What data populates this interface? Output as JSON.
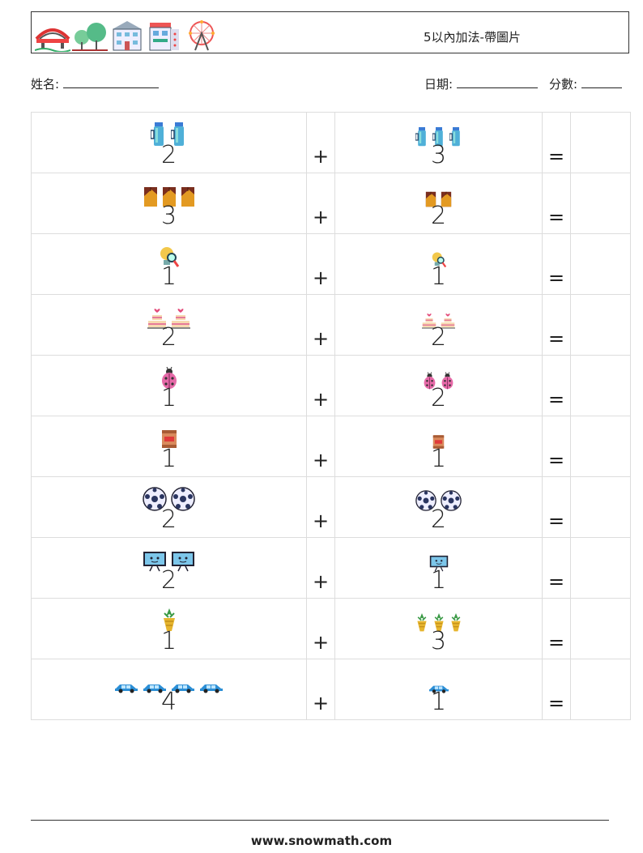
{
  "header": {
    "title": "5以內加法-帶圖片",
    "icons": [
      "bridge-icon",
      "trees-icon",
      "building-icon",
      "shop-icon",
      "ferris-wheel-icon"
    ]
  },
  "info": {
    "name_label": "姓名:",
    "date_label": "日期:",
    "score_label": "分數:"
  },
  "problems": [
    {
      "icon": "thermos-icon",
      "a": "2",
      "a_count": 2,
      "b": "3",
      "b_count": 3,
      "plus": "+",
      "equals": "="
    },
    {
      "icon": "chocolate-icon",
      "a": "3",
      "a_count": 3,
      "b": "2",
      "b_count": 2,
      "plus": "+",
      "equals": "="
    },
    {
      "icon": "magnifier-bulb-icon",
      "a": "1",
      "a_count": 1,
      "b": "1",
      "b_count": 1,
      "plus": "+",
      "equals": "="
    },
    {
      "icon": "wedding-cake-icon",
      "a": "2",
      "a_count": 2,
      "b": "2",
      "b_count": 2,
      "plus": "+",
      "equals": "="
    },
    {
      "icon": "ladybug-icon",
      "a": "1",
      "a_count": 1,
      "b": "2",
      "b_count": 2,
      "plus": "+",
      "equals": "="
    },
    {
      "icon": "drum-icon",
      "a": "1",
      "a_count": 1,
      "b": "1",
      "b_count": 1,
      "plus": "+",
      "equals": "="
    },
    {
      "icon": "soccer-ball-icon",
      "a": "2",
      "a_count": 2,
      "b": "2",
      "b_count": 2,
      "plus": "+",
      "equals": "="
    },
    {
      "icon": "monitor-icon",
      "a": "2",
      "a_count": 2,
      "b": "1",
      "b_count": 1,
      "plus": "+",
      "equals": "="
    },
    {
      "icon": "pineapple-icon",
      "a": "1",
      "a_count": 1,
      "b": "3",
      "b_count": 3,
      "plus": "+",
      "equals": "="
    },
    {
      "icon": "car-icon",
      "a": "4",
      "a_count": 4,
      "b": "1",
      "b_count": 1,
      "plus": "+",
      "equals": "="
    }
  ],
  "footer": {
    "url": "www.snowmath.com"
  }
}
